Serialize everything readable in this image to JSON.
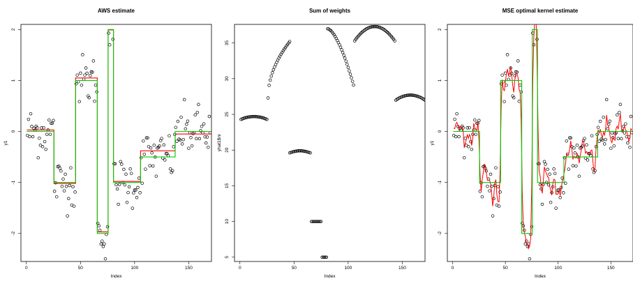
{
  "chart_data": [
    {
      "type": "scatter",
      "title": "AWS estimate",
      "xlabel": "Index",
      "ylabel": "y1",
      "xlim": [
        -5,
        171
      ],
      "ylim": [
        -2.55,
        2.1
      ],
      "x_ticks": [
        0,
        50,
        100,
        150
      ],
      "y_ticks": [
        -2,
        -1,
        0,
        1,
        2
      ],
      "grid": false,
      "legend": "none",
      "segments": [
        {
          "start": 0,
          "end": 25,
          "true_value": 0,
          "estimate": 0.03
        },
        {
          "start": 25,
          "end": 45,
          "true_value": -1,
          "estimate": -1.02
        },
        {
          "start": 45,
          "end": 65,
          "true_value": 1,
          "estimate": 1.05
        },
        {
          "start": 65,
          "end": 75,
          "true_value": -2,
          "estimate": -1.97
        },
        {
          "start": 75,
          "end": 80,
          "true_value": 2,
          "estimate": 1.99
        },
        {
          "start": 80,
          "end": 105,
          "true_value": -1,
          "estimate": -0.98
        },
        {
          "start": 105,
          "end": 137,
          "true_value": -0.5,
          "estimate": -0.38
        },
        {
          "start": 137,
          "end": 170,
          "true_value": 0,
          "estimate": -0.05
        }
      ],
      "series": [
        {
          "name": "",
          "kind": "points",
          "color": "#000000",
          "noise": 0.25
        },
        {
          "name": "",
          "kind": "step-line",
          "field": "estimate",
          "color": "#ff0000"
        },
        {
          "name": "",
          "kind": "step-line",
          "field": "true_value",
          "color": "#00cc00"
        }
      ]
    },
    {
      "type": "scatter",
      "title": "Sum of weights",
      "xlabel": "Index",
      "ylabel": "yhat1$ni",
      "xlim": [
        -5,
        171
      ],
      "ylim": [
        4.4,
        37.6
      ],
      "x_ticks": [
        0,
        50,
        100,
        150
      ],
      "y_ticks": [
        5,
        10,
        15,
        20,
        25,
        30,
        35
      ],
      "grid": false,
      "legend": "none",
      "groups": [
        {
          "start": 0,
          "end": 24,
          "shape": "arc",
          "low": 24.3,
          "high": 24.7
        },
        {
          "start": 25,
          "end": 45,
          "shape": "rise",
          "low": 27.3,
          "high": 35.2
        },
        {
          "start": 45,
          "end": 64,
          "shape": "arc",
          "low": 19.6,
          "high": 19.9
        },
        {
          "start": 65,
          "end": 74,
          "shape": "arc",
          "low": 10.0,
          "high": 10.0
        },
        {
          "start": 75,
          "end": 79,
          "shape": "arc",
          "low": 5.0,
          "high": 5.0
        },
        {
          "start": 80,
          "end": 104,
          "shape": "fall",
          "low": 29.1,
          "high": 37.0
        },
        {
          "start": 105,
          "end": 142,
          "shape": "arc",
          "low": 35.3,
          "high": 37.3
        },
        {
          "start": 143,
          "end": 170,
          "shape": "arc",
          "low": 27.0,
          "high": 27.7
        }
      ]
    },
    {
      "type": "scatter",
      "title": "MSE optimal kernel estimate",
      "xlabel": "Index",
      "ylabel": "y1",
      "xlim": [
        -5,
        171
      ],
      "ylim": [
        -2.55,
        2.1
      ],
      "x_ticks": [
        0,
        50,
        100,
        150
      ],
      "y_ticks": [
        -2,
        -1,
        0,
        1,
        2
      ],
      "grid": false,
      "legend": "none",
      "series": [
        {
          "name": "",
          "kind": "points",
          "color": "#000000"
        },
        {
          "name": "",
          "kind": "kernel-line",
          "color": "#ff0000",
          "noise": 0.18
        },
        {
          "name": "",
          "kind": "step-line",
          "field": "true_value",
          "color": "#00cc00"
        }
      ]
    }
  ]
}
